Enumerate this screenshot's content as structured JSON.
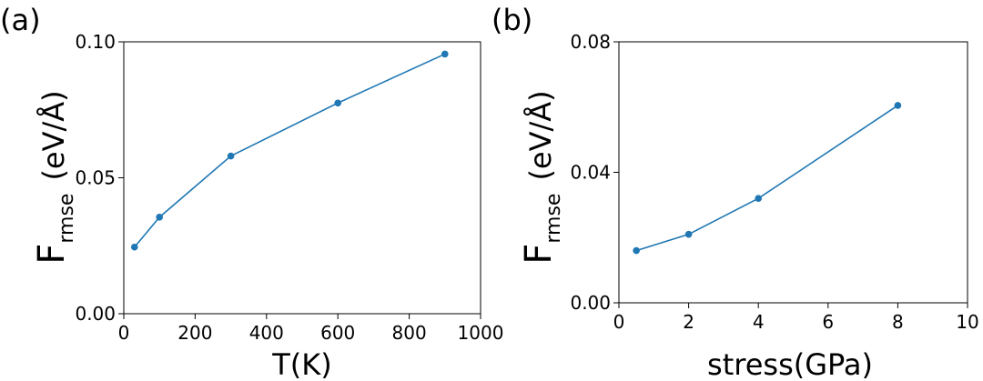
{
  "chart_data": [
    {
      "type": "line",
      "panel_label": "(a)",
      "xlabel": "T(K)",
      "ylabel": {
        "main": "F",
        "sub": "rmse",
        "unit": "(eV/Å)"
      },
      "x": [
        30,
        100,
        300,
        600,
        900
      ],
      "series": [
        {
          "name": "Frmse",
          "values": [
            0.0245,
            0.0355,
            0.058,
            0.0775,
            0.0955
          ]
        }
      ],
      "xlim": [
        0,
        1000
      ],
      "ylim": [
        0,
        0.1
      ],
      "xticks": [
        0,
        200,
        400,
        600,
        800,
        1000
      ],
      "xtick_labels": [
        "0",
        "200",
        "400",
        "600",
        "800",
        "1000"
      ],
      "yticks": [
        0,
        0.05,
        0.1
      ],
      "ytick_labels": [
        "0.00",
        "0.05",
        "0.10"
      ],
      "color": "#1f77b4",
      "grid": false
    },
    {
      "type": "line",
      "panel_label": "(b)",
      "xlabel": "stress(GPa)",
      "ylabel": {
        "main": "F",
        "sub": "rmse",
        "unit": "(eV/Å)"
      },
      "x": [
        0.5,
        2,
        4,
        8
      ],
      "series": [
        {
          "name": "Frmse",
          "values": [
            0.016,
            0.021,
            0.032,
            0.0605
          ]
        }
      ],
      "xlim": [
        0,
        10
      ],
      "ylim": [
        0,
        0.08
      ],
      "xticks": [
        0,
        2,
        4,
        6,
        8,
        10
      ],
      "xtick_labels": [
        "0",
        "2",
        "4",
        "6",
        "8",
        "10"
      ],
      "yticks": [
        0,
        0.04,
        0.08
      ],
      "ytick_labels": [
        "0.00",
        "0.04",
        "0.08"
      ],
      "color": "#1f77b4",
      "grid": false
    }
  ]
}
